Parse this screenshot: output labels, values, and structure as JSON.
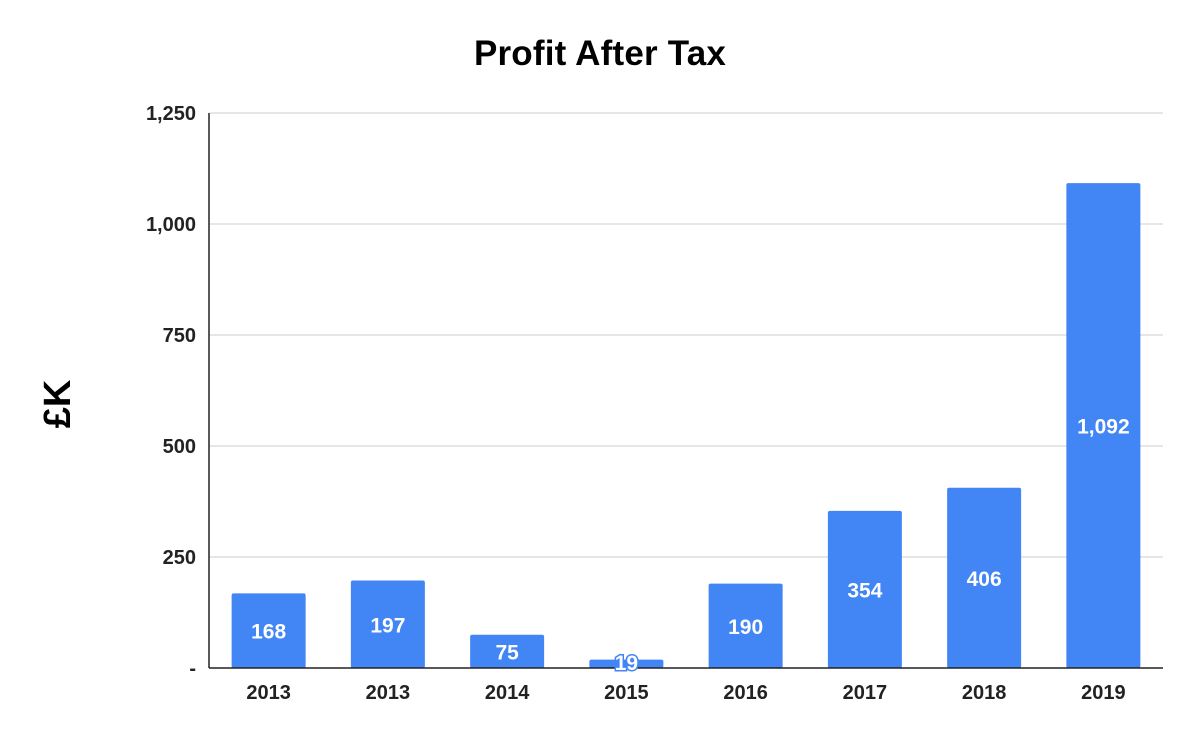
{
  "chart_data": {
    "type": "bar",
    "title": "Profit After Tax",
    "xlabel": "",
    "ylabel": "£K",
    "categories": [
      "2013",
      "2013",
      "2014",
      "2015",
      "2016",
      "2017",
      "2018",
      "2019"
    ],
    "values": [
      168,
      197,
      75,
      19,
      190,
      354,
      406,
      1092
    ],
    "data_labels": [
      "168",
      "197",
      "75",
      "19",
      "190",
      "354",
      "406",
      "1,092"
    ],
    "ylim": [
      0,
      1250
    ],
    "yticks": [
      0,
      250,
      500,
      750,
      1000,
      1250
    ],
    "ytick_labels": [
      "-",
      "250",
      "500",
      "750",
      "1,000",
      "1,250"
    ],
    "grid": true,
    "legend": "none",
    "colors": {
      "bar": "#4285f4",
      "label_text": "#ffffff",
      "grid": "#cccccc",
      "axis": "#222222"
    }
  }
}
